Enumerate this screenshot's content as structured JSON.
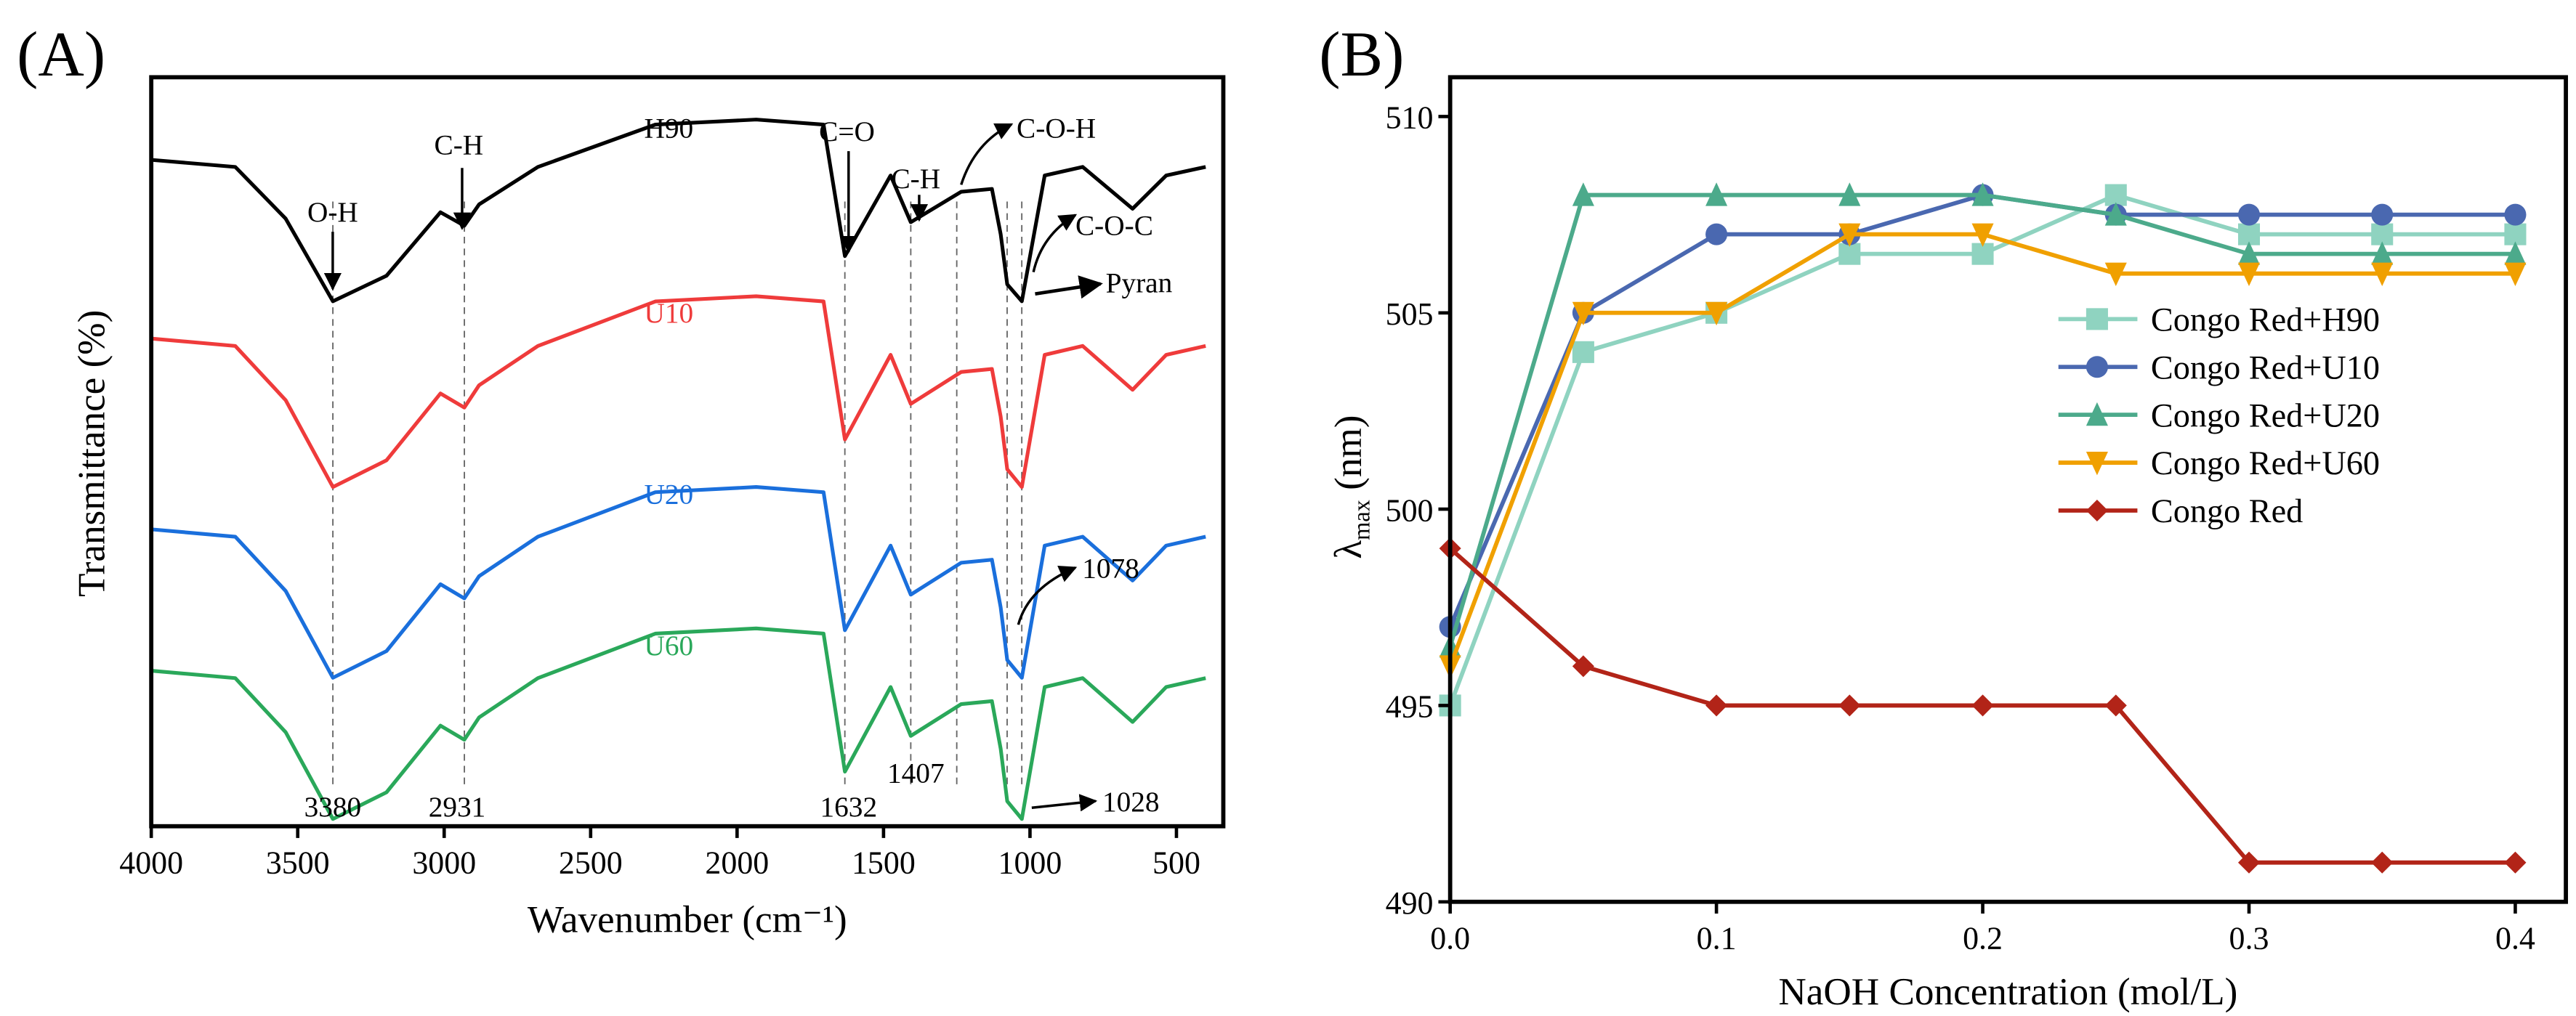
{
  "chart_data": [
    {
      "type": "line",
      "panel_label": "(A)",
      "title": "",
      "xlabel": "Wavenumber (cm⁻¹)",
      "ylabel": "Transmittance (%)",
      "xlim": [
        4000,
        340
      ],
      "ylim": [
        0,
        106
      ],
      "xticks": [
        4000,
        3500,
        3000,
        2500,
        2000,
        1500,
        1000,
        500
      ],
      "shape_wavenumber": [
        4000,
        3713,
        3541,
        3380,
        3197,
        3013,
        2931,
        2881,
        2680,
        2279,
        1935,
        1705,
        1632,
        1476,
        1407,
        1235,
        1130,
        1100,
        1078,
        1028,
        950,
        820,
        650,
        535,
        400
      ],
      "shape_transmittance": [
        94.3,
        93.3,
        86,
        74.3,
        77.9,
        86.9,
        85,
        88,
        93.3,
        99.3,
        100,
        99.3,
        80.7,
        92.1,
        85.5,
        89.8,
        90.2,
        83.8,
        76.7,
        74.3,
        92.1,
        93.3,
        87.4,
        92.1,
        93.3
      ],
      "series": [
        {
          "name": "H90",
          "color": "#000000",
          "offset": 0,
          "depth_scale": 1.0
        },
        {
          "name": "U10",
          "color": "#ef3b3b",
          "offset": -25,
          "depth_scale": 1.05
        },
        {
          "name": "U20",
          "color": "#1a6fdc",
          "offset": -52,
          "depth_scale": 1.05
        },
        {
          "name": "U60",
          "color": "#2aa85a",
          "offset": -72,
          "depth_scale": 1.05
        }
      ],
      "reference_lines": [
        3380,
        2931,
        1632,
        1407,
        1250,
        1078,
        1028
      ],
      "annotations": {
        "oh": "O-H",
        "ch1": "C-H",
        "co": "C=O",
        "ch2": "C-H",
        "coh": "C-O-H",
        "coc": "C-O-C",
        "pyran": "Pyran",
        "n1078": "1078",
        "n1407": "1407",
        "n1028": "1028",
        "n3380": "3380",
        "n2931": "2931",
        "n1632": "1632"
      }
    },
    {
      "type": "line",
      "panel_label": "(B)",
      "title": "",
      "xlabel": "NaOH Concentration (mol/L)",
      "ylabel": "λ",
      "ylabel_sub": "max",
      "ylabel_unit": " (nm)",
      "xlim": [
        0,
        0.419
      ],
      "ylim": [
        490,
        511
      ],
      "xticks": [
        "0.0",
        "0.1",
        "0.2",
        "0.3",
        "0.4"
      ],
      "yticks": [
        "490",
        "495",
        "500",
        "505",
        "510"
      ],
      "x": [
        0,
        0.05,
        0.1,
        0.15,
        0.2,
        0.25,
        0.3,
        0.35,
        0.4
      ],
      "legend_position": "center-right",
      "series": [
        {
          "name": "Congo Red+H90",
          "color": "#8fd3c0",
          "marker": "square",
          "values": [
            495,
            504,
            505,
            506.5,
            506.5,
            508,
            507,
            507,
            507
          ]
        },
        {
          "name": "Congo Red+U10",
          "color": "#4a68b0",
          "marker": "circle",
          "values": [
            497,
            505,
            507,
            507,
            508,
            507.5,
            507.5,
            507.5,
            507.5
          ]
        },
        {
          "name": "Congo Red+U20",
          "color": "#4caa8b",
          "marker": "triangle-up",
          "values": [
            496.5,
            508,
            508,
            508,
            508,
            507.5,
            506.5,
            506.5,
            506.5
          ]
        },
        {
          "name": "Congo Red+U60",
          "color": "#f0a000",
          "marker": "triangle-down",
          "values": [
            496,
            505,
            505,
            507,
            507,
            506,
            506,
            506,
            506
          ]
        },
        {
          "name": "Congo Red",
          "color": "#b22418",
          "marker": "diamond",
          "values": [
            499,
            496,
            495,
            495,
            495,
            495,
            491,
            491,
            491
          ]
        }
      ]
    }
  ]
}
